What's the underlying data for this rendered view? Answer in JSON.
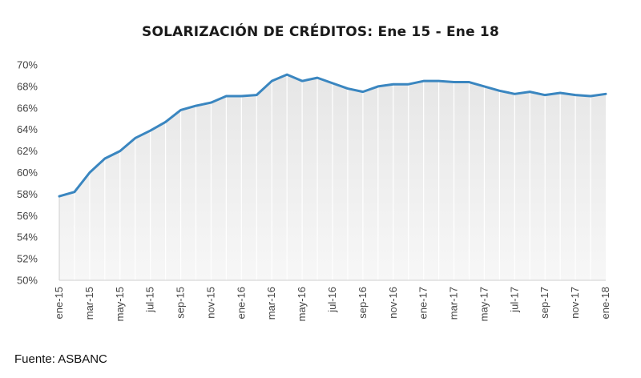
{
  "chart_data": {
    "type": "area",
    "title": "SOLARIZACIÓN DE CRÉDITOS: Ene 15 - Ene 18",
    "xlabel": "",
    "ylabel": "",
    "ylim": [
      50,
      70
    ],
    "yticks": [
      "50%",
      "52%",
      "54%",
      "56%",
      "58%",
      "60%",
      "62%",
      "64%",
      "66%",
      "68%",
      "70%"
    ],
    "grid": "vertical",
    "legend": "none",
    "x": [
      "ene-15",
      "feb-15",
      "mar-15",
      "abr-15",
      "may-15",
      "jun-15",
      "jul-15",
      "ago-15",
      "sep-15",
      "oct-15",
      "nov-15",
      "dic-15",
      "ene-16",
      "feb-16",
      "mar-16",
      "abr-16",
      "may-16",
      "jun-16",
      "jul-16",
      "ago-16",
      "sep-16",
      "oct-16",
      "nov-16",
      "dic-16",
      "ene-17",
      "feb-17",
      "mar-17",
      "abr-17",
      "may-17",
      "jun-17",
      "jul-17",
      "ago-17",
      "sep-17",
      "oct-17",
      "nov-17",
      "dic-17",
      "ene-18"
    ],
    "xtick_labels": [
      "ene-15",
      "mar-15",
      "may-15",
      "jul-15",
      "sep-15",
      "nov-15",
      "ene-16",
      "mar-16",
      "may-16",
      "jul-16",
      "sep-16",
      "nov-16",
      "ene-17",
      "mar-17",
      "may-17",
      "jul-17",
      "sep-17",
      "nov-17",
      "ene-18"
    ],
    "series": [
      {
        "values": [
          57.8,
          58.2,
          60.0,
          61.3,
          62.0,
          63.2,
          63.9,
          64.7,
          65.8,
          66.2,
          66.5,
          67.1,
          67.1,
          67.2,
          68.5,
          69.1,
          68.5,
          68.8,
          68.3,
          67.8,
          67.5,
          68.0,
          68.2,
          68.2,
          68.5,
          68.5,
          68.4,
          68.4,
          68.0,
          67.6,
          67.3,
          67.5,
          67.2,
          67.4,
          67.2,
          67.1,
          67.3
        ]
      }
    ],
    "colors": {
      "line": "#3a86c0",
      "area": "#ececec",
      "grid": "#ffffff",
      "axis": "#cfcfcf"
    }
  },
  "footer": {
    "source": "Fuente: ASBANC"
  }
}
